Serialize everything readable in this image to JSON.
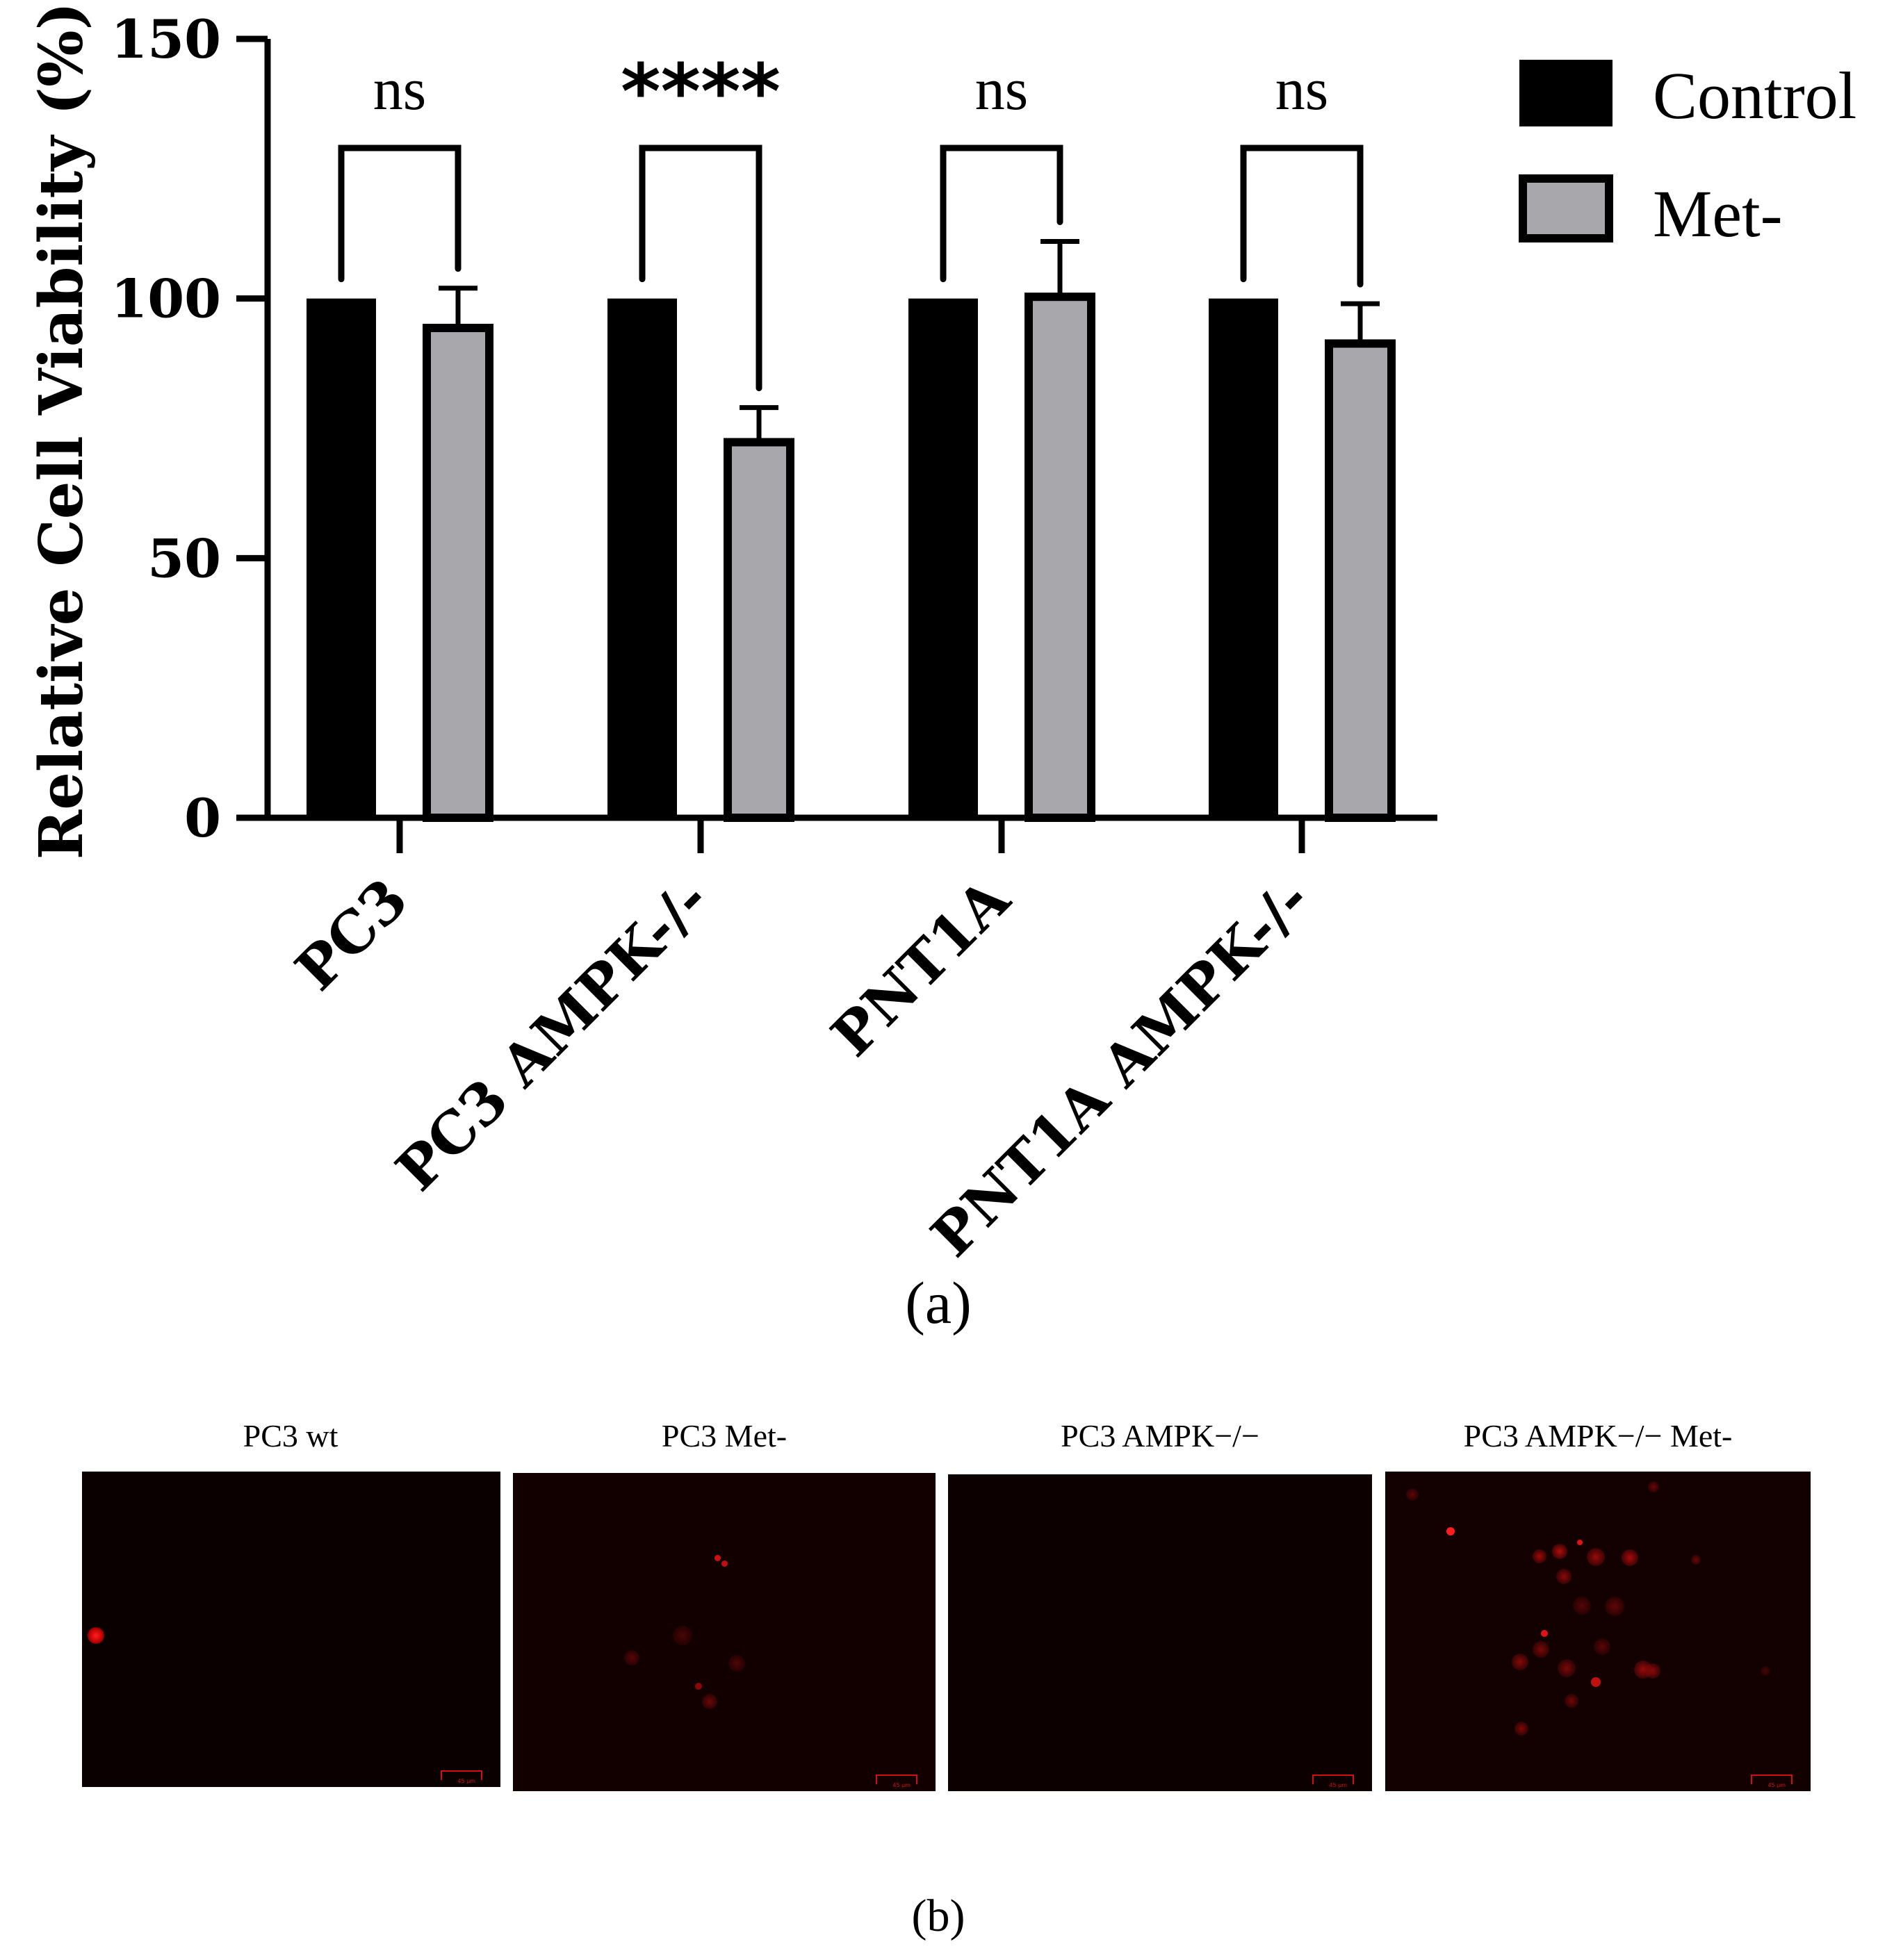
{
  "chart_data": {
    "type": "bar",
    "categories": [
      "PC3",
      "PC3 AMPK-/-",
      "PNT1A",
      "PNT1A AMPK-/-"
    ],
    "series": [
      {
        "name": "Control",
        "color": "#000000",
        "values": [
          100,
          100,
          100,
          100
        ],
        "errors": [
          0,
          0,
          0,
          0
        ]
      },
      {
        "name": "Met-",
        "color": "#a8a7ab",
        "values": [
          95,
          73,
          101,
          92
        ],
        "errors": [
          7,
          6,
          10,
          7
        ]
      }
    ],
    "ylabel": "Relative Cell Viability (%)",
    "ylim": [
      0,
      150
    ],
    "yticks": [
      0,
      50,
      100,
      150
    ],
    "significance": [
      "ns",
      "****",
      "ns",
      "ns"
    ],
    "legend": [
      "Control",
      "Met-"
    ],
    "legend_position": "top-right"
  },
  "captions": {
    "a": "(a)",
    "b": "(b)"
  },
  "panels": [
    {
      "title": "PC3 wt",
      "scale_label": "45 µm"
    },
    {
      "title": "PC3 Met-",
      "scale_label": "45 µm"
    },
    {
      "title": "PC3 AMPK−/−",
      "scale_label": "45 µm"
    },
    {
      "title": "PC3 AMPK−/− Met-",
      "scale_label": "45 µm"
    }
  ]
}
